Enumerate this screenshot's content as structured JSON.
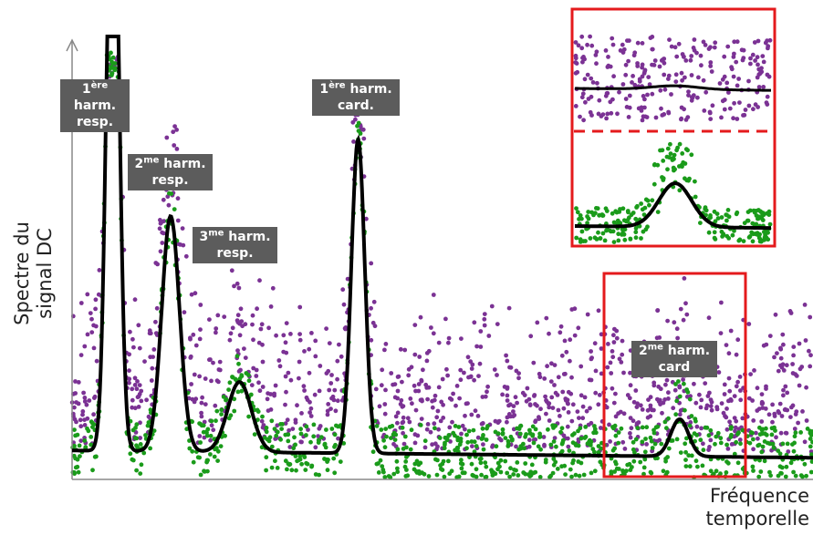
{
  "chart_data": {
    "type": "scatter",
    "title": "",
    "xlabel": "Fréquence temporelle",
    "ylabel": "Spectre du signal DC",
    "xlim": [
      0,
      1
    ],
    "ylim": [
      0,
      1
    ],
    "grid": false,
    "series": [
      {
        "color": "#7b3294",
        "kind": "points"
      },
      {
        "color": "#1a9b1a",
        "kind": "points"
      },
      {
        "color": "#000000",
        "kind": "line",
        "baseline": 0.07,
        "peaks": [
          {
            "x": 0.055,
            "height": 1.6,
            "width": 0.008
          },
          {
            "x": 0.133,
            "height": 0.57,
            "width": 0.012
          },
          {
            "x": 0.226,
            "height": 0.17,
            "width": 0.016
          },
          {
            "x": 0.386,
            "height": 0.76,
            "width": 0.009
          },
          {
            "x": 0.82,
            "height": 0.09,
            "width": 0.012
          }
        ]
      }
    ],
    "annotations": [
      {
        "sup": "ère",
        "pre": "1",
        "line1": "harm.",
        "line2": "resp."
      },
      {
        "sup": "me",
        "pre": "2",
        "line1": "harm.",
        "line2": "resp."
      },
      {
        "sup": "me",
        "pre": "3",
        "line1": "harm.",
        "line2": "resp."
      },
      {
        "sup": "ère",
        "pre": "1",
        "line1": "harm.",
        "line2": "card."
      },
      {
        "sup": "me",
        "pre": "2",
        "line1": "harm.",
        "line2": "card"
      }
    ],
    "highlight_color": "#e41a1c"
  }
}
